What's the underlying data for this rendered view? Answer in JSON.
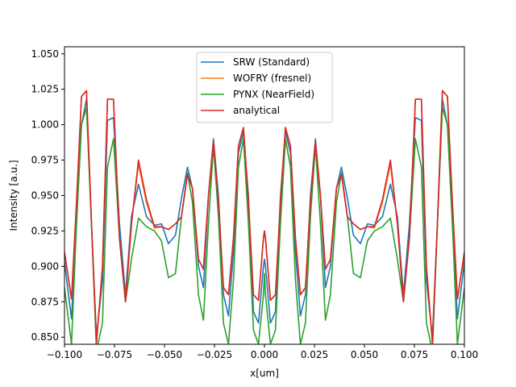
{
  "chart_data": {
    "type": "line",
    "title": "",
    "xlabel": "x[um]",
    "ylabel": "Intensity [a.u.]",
    "xlim": [
      -0.1,
      0.1
    ],
    "ylim": [
      0.845,
      1.055
    ],
    "xticks": [
      -0.1,
      -0.075,
      -0.05,
      -0.025,
      0.0,
      0.025,
      0.05,
      0.075,
      0.1
    ],
    "xtick_labels": [
      "−0.100",
      "−0.075",
      "−0.050",
      "−0.025",
      "0.000",
      "0.025",
      "0.050",
      "0.075",
      "0.100"
    ],
    "yticks": [
      0.85,
      0.875,
      0.9,
      0.925,
      0.95,
      0.975,
      1.0,
      1.025,
      1.05
    ],
    "ytick_labels": [
      "0.850",
      "0.875",
      "0.900",
      "0.925",
      "0.950",
      "0.975",
      "1.000",
      "1.025",
      "1.050"
    ],
    "grid": false,
    "legend_position": "top-center",
    "x": [
      -0.1,
      -0.0965,
      -0.094,
      -0.0915,
      -0.089,
      -0.0865,
      -0.084,
      -0.081,
      -0.0785,
      -0.0755,
      -0.0725,
      -0.0695,
      -0.0665,
      -0.063,
      -0.059,
      -0.055,
      -0.0515,
      -0.048,
      -0.0445,
      -0.0415,
      -0.0385,
      -0.036,
      -0.033,
      -0.0305,
      -0.028,
      -0.0255,
      -0.023,
      -0.0205,
      -0.018,
      -0.0155,
      -0.013,
      -0.0105,
      -0.008,
      -0.0055,
      -0.003,
      -0.0005,
      0.0,
      0.0005,
      0.003,
      0.0055,
      0.008,
      0.0105,
      0.013,
      0.0155,
      0.018,
      0.0205,
      0.023,
      0.0255,
      0.028,
      0.0305,
      0.033,
      0.036,
      0.0385,
      0.0415,
      0.0445,
      0.048,
      0.0515,
      0.055,
      0.059,
      0.063,
      0.0665,
      0.0695,
      0.0725,
      0.0755,
      0.0785,
      0.081,
      0.084,
      0.0865,
      0.089,
      0.0915,
      0.094,
      0.0965,
      0.1
    ],
    "series": [
      {
        "name": "SRW (Standard)",
        "color": "#1f77b4",
        "y": [
          0.903,
          0.863,
          0.93,
          1.0,
          1.018,
          0.93,
          0.85,
          0.89,
          1.003,
          1.005,
          0.93,
          0.88,
          0.935,
          0.958,
          0.935,
          0.929,
          0.93,
          0.916,
          0.922,
          0.948,
          0.97,
          0.955,
          0.9,
          0.885,
          0.95,
          0.99,
          0.95,
          0.88,
          0.865,
          0.91,
          0.98,
          0.995,
          0.95,
          0.868,
          0.86,
          0.9,
          0.905,
          0.9,
          0.86,
          0.868,
          0.95,
          0.995,
          0.98,
          0.91,
          0.865,
          0.88,
          0.95,
          0.99,
          0.95,
          0.885,
          0.9,
          0.955,
          0.97,
          0.948,
          0.922,
          0.916,
          0.93,
          0.929,
          0.935,
          0.958,
          0.935,
          0.88,
          0.93,
          1.005,
          1.003,
          0.89,
          0.85,
          0.93,
          1.018,
          1.0,
          0.93,
          0.863,
          0.903
        ]
      },
      {
        "name": "WOFRY (fresnel)",
        "color": "#ff7f0e",
        "y": [
          0.91,
          0.877,
          0.945,
          1.02,
          1.024,
          0.93,
          0.846,
          0.9,
          1.018,
          1.018,
          0.92,
          0.875,
          0.93,
          0.972,
          0.945,
          0.927,
          0.928,
          0.926,
          0.93,
          0.935,
          0.965,
          0.955,
          0.905,
          0.898,
          0.95,
          0.988,
          0.945,
          0.885,
          0.88,
          0.92,
          0.985,
          0.998,
          0.945,
          0.88,
          0.876,
          0.92,
          0.925,
          0.92,
          0.876,
          0.88,
          0.945,
          0.998,
          0.985,
          0.92,
          0.88,
          0.885,
          0.945,
          0.988,
          0.95,
          0.898,
          0.905,
          0.955,
          0.965,
          0.935,
          0.93,
          0.926,
          0.928,
          0.927,
          0.945,
          0.972,
          0.93,
          0.875,
          0.92,
          1.018,
          1.018,
          0.9,
          0.846,
          0.93,
          1.024,
          1.02,
          0.945,
          0.877,
          0.91
        ]
      },
      {
        "name": "PYNX (NearField)",
        "color": "#2ca02c",
        "y": [
          0.885,
          0.845,
          0.93,
          1.0,
          1.012,
          0.93,
          0.84,
          0.86,
          0.97,
          0.99,
          0.92,
          0.875,
          0.905,
          0.934,
          0.928,
          0.925,
          0.918,
          0.892,
          0.895,
          0.935,
          0.966,
          0.945,
          0.88,
          0.862,
          0.93,
          0.985,
          0.935,
          0.86,
          0.845,
          0.89,
          0.97,
          0.99,
          0.93,
          0.855,
          0.845,
          0.88,
          0.895,
          0.88,
          0.845,
          0.855,
          0.93,
          0.99,
          0.97,
          0.89,
          0.845,
          0.86,
          0.935,
          0.985,
          0.93,
          0.862,
          0.88,
          0.945,
          0.966,
          0.935,
          0.895,
          0.892,
          0.918,
          0.925,
          0.928,
          0.934,
          0.905,
          0.875,
          0.92,
          0.99,
          0.97,
          0.86,
          0.84,
          0.93,
          1.012,
          1.0,
          0.93,
          0.845,
          0.885
        ]
      },
      {
        "name": "analytical",
        "color": "#d62728",
        "y": [
          0.91,
          0.877,
          0.945,
          1.02,
          1.024,
          0.93,
          0.846,
          0.9,
          1.018,
          1.018,
          0.92,
          0.875,
          0.93,
          0.975,
          0.947,
          0.928,
          0.928,
          0.926,
          0.93,
          0.935,
          0.965,
          0.955,
          0.905,
          0.898,
          0.95,
          0.988,
          0.945,
          0.885,
          0.88,
          0.92,
          0.985,
          0.998,
          0.945,
          0.88,
          0.876,
          0.92,
          0.925,
          0.92,
          0.876,
          0.88,
          0.945,
          0.998,
          0.985,
          0.92,
          0.88,
          0.885,
          0.945,
          0.988,
          0.95,
          0.898,
          0.905,
          0.955,
          0.965,
          0.935,
          0.93,
          0.926,
          0.928,
          0.928,
          0.947,
          0.975,
          0.93,
          0.875,
          0.92,
          1.018,
          1.018,
          0.9,
          0.846,
          0.93,
          1.024,
          1.02,
          0.945,
          0.877,
          0.91
        ]
      }
    ]
  }
}
